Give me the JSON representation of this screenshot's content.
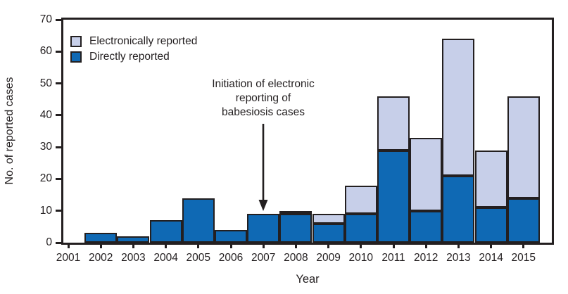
{
  "figure": {
    "background": "#ffffff",
    "axis_color": "#231f20"
  },
  "chart_data": {
    "type": "bar",
    "stacked": true,
    "title": "",
    "xlabel": "Year",
    "ylabel": "No. of reported cases",
    "ylim": [
      0,
      70
    ],
    "yticks": [
      0,
      10,
      20,
      30,
      40,
      50,
      60,
      70
    ],
    "grid": false,
    "legend_position": "top-left-inside",
    "categories": [
      "2001",
      "2002",
      "2003",
      "2004",
      "2005",
      "2006",
      "2007",
      "2008",
      "2009",
      "2010",
      "2011",
      "2012",
      "2013",
      "2014",
      "2015"
    ],
    "series": [
      {
        "name": "Electronically reported",
        "color": "#c7cfe9",
        "values": [
          0,
          0,
          0,
          0,
          0,
          0,
          0,
          1,
          3,
          9,
          17,
          23,
          43,
          18,
          32
        ]
      },
      {
        "name": "Directly reported",
        "color": "#0f69b4",
        "values": [
          0,
          3,
          2,
          7,
          14,
          4,
          9,
          9,
          6,
          9,
          29,
          10,
          21,
          11,
          14
        ]
      }
    ],
    "stack_bottom_to_top": [
      "Directly reported",
      "Electronically reported"
    ],
    "annotation": {
      "text_lines": [
        "Initiation of electronic",
        "reporting of",
        "babesiosis cases"
      ],
      "arrow_target_category": "2007"
    }
  }
}
